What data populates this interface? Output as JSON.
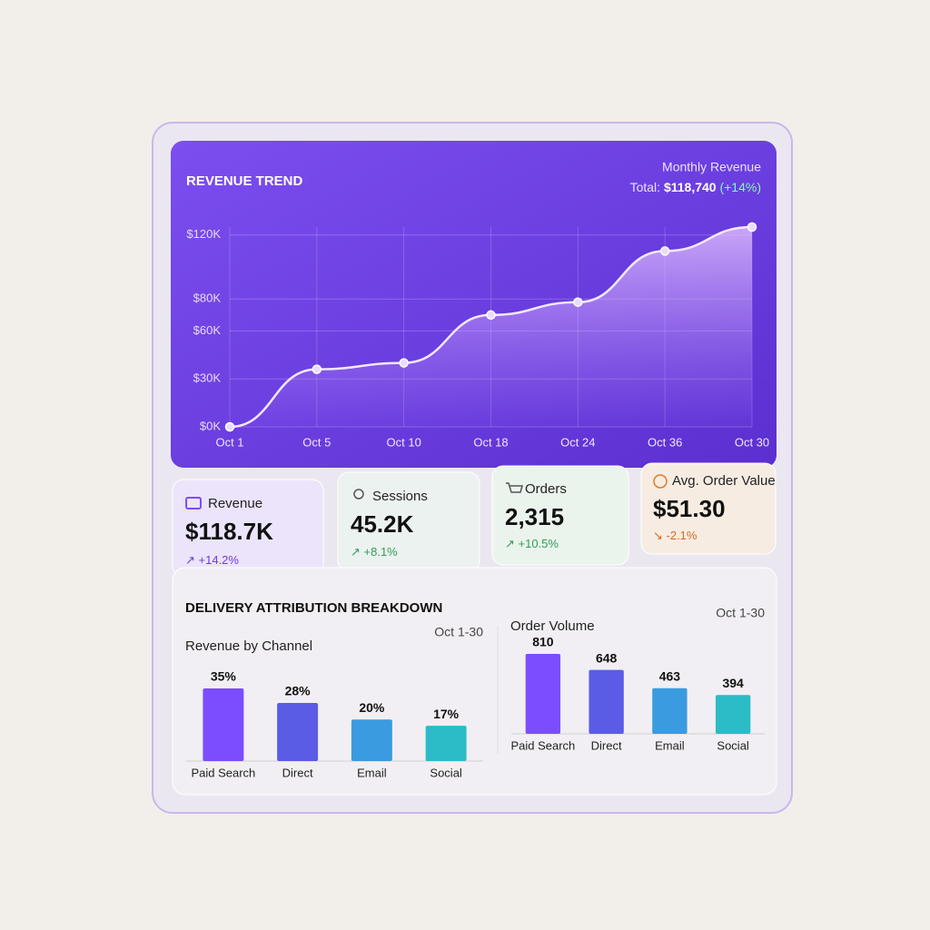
{
  "chart_data": [
    {
      "type": "line",
      "title": "REVENUE TREND",
      "subtitle": "Monthly Revenue",
      "total_label": "Total:",
      "total_value": "$118,740",
      "total_change": "(+14%)",
      "categories": [
        "Oct 1",
        "Oct 5",
        "Oct 10",
        "Oct 18",
        "Oct 24",
        "Oct 36",
        "Oct 30"
      ],
      "values": [
        0,
        36,
        40,
        70,
        78,
        110,
        125
      ],
      "color": "#f3e8ff",
      "ylim": [
        0,
        125
      ],
      "yticks": [
        {
          "value": 0,
          "label": "$0K"
        },
        {
          "value": 30,
          "label": "$30K"
        },
        {
          "value": 60,
          "label": "$60K"
        },
        {
          "value": 80,
          "label": "$80K"
        },
        {
          "value": 120,
          "label": "$120K"
        }
      ],
      "grid": true
    },
    {
      "type": "bar",
      "title": "Revenue by Channel",
      "subtitle": "Oct 1-30",
      "categories": [
        "Paid Search",
        "Direct",
        "Email",
        "Social"
      ],
      "values": [
        35,
        28,
        20,
        17
      ],
      "value_labels": [
        "35%",
        "28%",
        "20%",
        "17%"
      ],
      "colors": [
        "#7c4dff",
        "#5b5ce6",
        "#3a9be0",
        "#2bbcc8"
      ]
    },
    {
      "type": "bar",
      "title": "Order Volume",
      "subtitle": "Oct 1-30",
      "categories": [
        "Paid Search",
        "Direct",
        "Email",
        "Social"
      ],
      "values": [
        810,
        648,
        463,
        394
      ],
      "colors": [
        "#7c4dff",
        "#5b5ce6",
        "#3a9be0",
        "#2bbcc8"
      ]
    }
  ],
  "kpis": [
    {
      "label": "Revenue",
      "value": "$118.7K",
      "change": "+14.2%"
    },
    {
      "label": "Sessions",
      "value": "45.2K",
      "change": "+8.1%"
    },
    {
      "label": "Orders",
      "value": "2,315",
      "change": "+10.5%"
    },
    {
      "label": "Avg. Order Value",
      "value": "$51.30",
      "change": "-2.1%"
    }
  ],
  "breakdown_title": "DELIVERY ATTRIBUTION BREAKDOWN"
}
